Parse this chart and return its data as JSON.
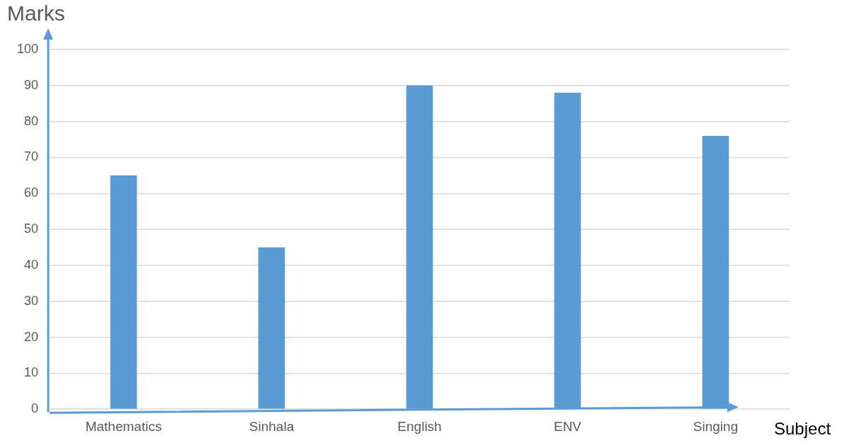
{
  "chart_data": {
    "type": "bar",
    "xlabel": "Subject",
    "ylabel": "Marks",
    "categories": [
      "Mathematics",
      "Sinhala",
      "English",
      "ENV",
      "Singing"
    ],
    "values": [
      65,
      45,
      90,
      88,
      76
    ],
    "color": "#5b9bd5",
    "ylim": [
      0,
      100
    ],
    "yticks": [
      0,
      10,
      20,
      30,
      40,
      50,
      60,
      70,
      80,
      90,
      100
    ],
    "grid": "y",
    "legend": false
  }
}
